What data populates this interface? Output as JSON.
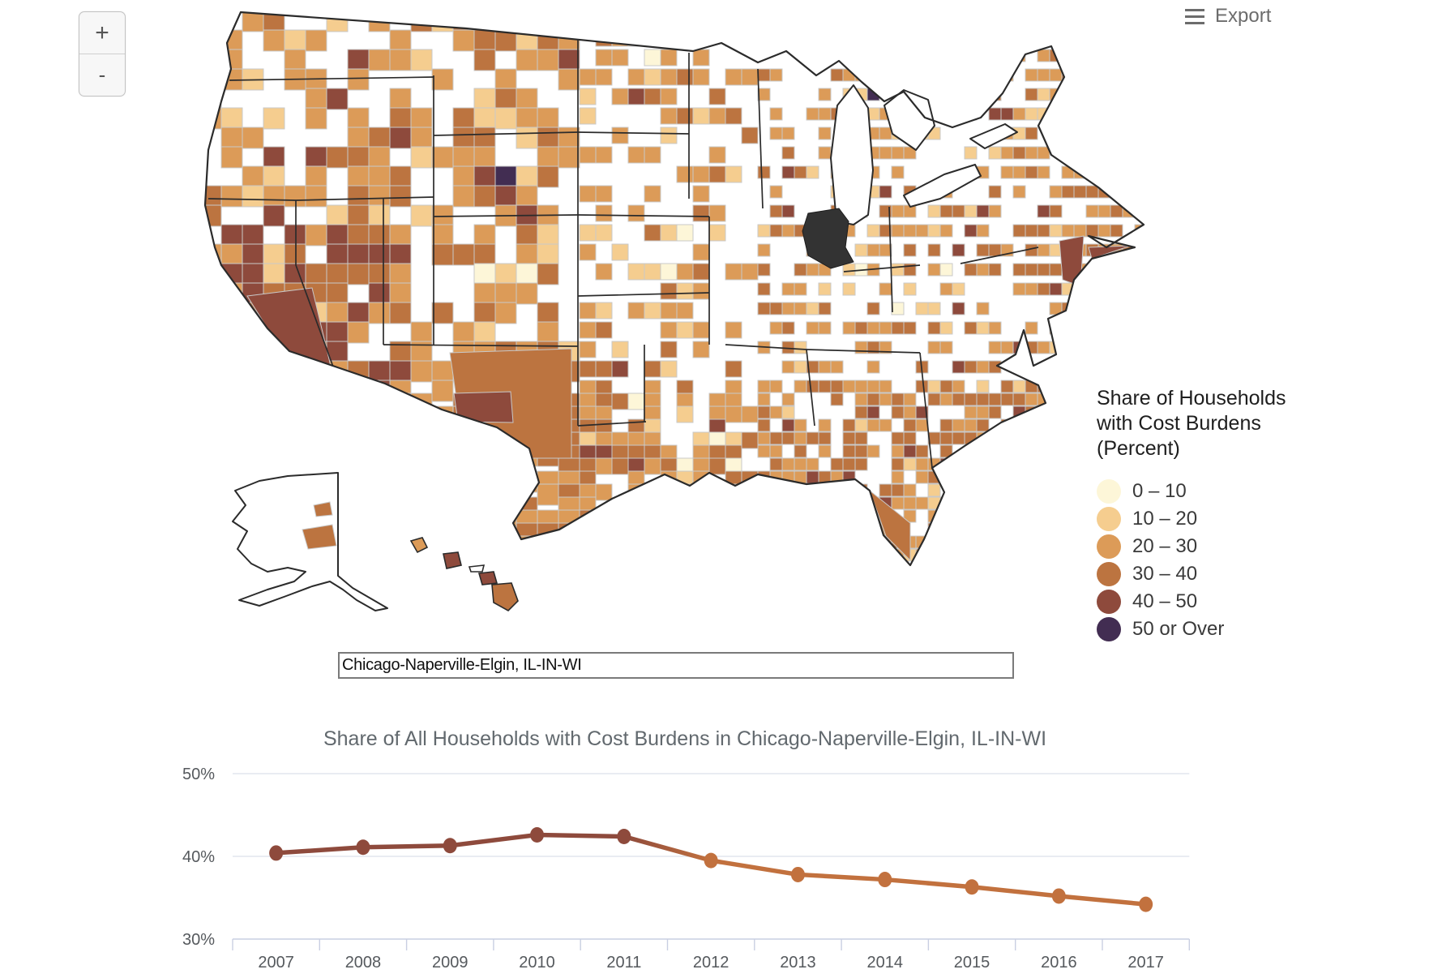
{
  "map_controls": {
    "zoom_in_label": "+",
    "zoom_out_label": "-"
  },
  "toolbar": {
    "export_label": "Export"
  },
  "legend": {
    "title_lines": [
      "Share of Households",
      "with Cost Burdens",
      "(Percent)"
    ],
    "items": [
      {
        "label": "0 – 10",
        "color": "#FDF6D8"
      },
      {
        "label": "10 – 20",
        "color": "#F5CD8F"
      },
      {
        "label": "20 – 30",
        "color": "#DC9B58"
      },
      {
        "label": "30 – 40",
        "color": "#BC7440"
      },
      {
        "label": "40 – 50",
        "color": "#8E4A3C"
      },
      {
        "label": "50 or Over",
        "color": "#422D52"
      }
    ]
  },
  "map": {
    "no_data_color": "#ffffff",
    "county_border_color": "#c9c9c9",
    "state_border_color": "#2b2b2b",
    "selected_region_color": "#333333"
  },
  "search": {
    "value": "Chicago-Naperville-Elgin, IL-IN-WI"
  },
  "chart_data": {
    "type": "line",
    "title": "Share of All Households with Cost Burdens in Chicago-Naperville-Elgin, IL-IN-WI",
    "x": [
      2007,
      2008,
      2009,
      2010,
      2011,
      2012,
      2013,
      2014,
      2015,
      2016,
      2017
    ],
    "series": [
      {
        "name": "Share of All Households with Cost Burdens (Percent)",
        "values": [
          40.4,
          41.1,
          41.3,
          42.6,
          42.4,
          39.5,
          37.8,
          37.2,
          36.3,
          35.2,
          34.2
        ]
      }
    ],
    "ylim": [
      30,
      50
    ],
    "yticks": [
      30,
      40,
      50
    ],
    "ytick_labels": [
      "30%",
      "40%",
      "50%"
    ],
    "grid": true,
    "legend_position": "none",
    "color_rule": {
      "threshold": 40,
      "at_or_above": "#8E4A3C",
      "below": "#C2713E"
    }
  }
}
